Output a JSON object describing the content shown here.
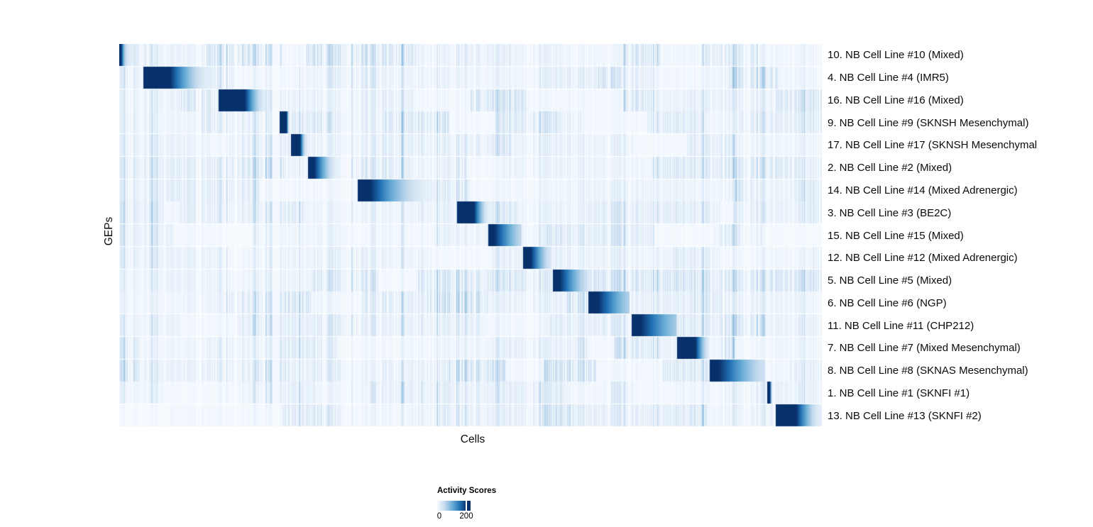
{
  "chart_data": {
    "type": "heatmap",
    "title": "",
    "xlabel": "Cells",
    "ylabel": "GEPs",
    "x_axis_ticks": "none (individual cells, unlabeled columns)",
    "value_range": [
      0,
      240
    ],
    "colormap": {
      "name": "Blues (white to dark navy)",
      "stops": [
        "#f7fbff",
        "#c6dbef",
        "#6baed6",
        "#2171b5",
        "#08306b"
      ]
    },
    "legend": {
      "title": "Activity Scores",
      "labels": [
        "0",
        "200"
      ],
      "min_value": 0,
      "tick_value": 200,
      "position": "bottom-center"
    },
    "grid": false,
    "layout": "rows = GEPs (17), columns = single cells; each GEP shows a dark high-activity block over its own cell-line cluster, forming a diagonal; faint vertical striping elsewhere",
    "rows": [
      {
        "label": "10. NB Cell Line #10 (Mixed)",
        "block": {
          "start": 0.0,
          "solid_end": 0.003,
          "fade_end": 0.028,
          "end_v": 0.1,
          "power": 6.0,
          "peak": 1.0
        }
      },
      {
        "label": "4. NB Cell Line #4 (IMR5)",
        "block": {
          "start": 0.0343,
          "solid_end": 0.0727,
          "fade_end": 0.1434,
          "end_v": 0.03,
          "power": 2.0,
          "peak": 1.0
        }
      },
      {
        "label": "16. NB Cell Line #16 (Mixed)",
        "block": {
          "start": 0.1414,
          "solid_end": 0.1788,
          "fade_end": 0.2152,
          "end_v": 0.05,
          "power": 2.0,
          "peak": 1.0
        }
      },
      {
        "label": "9. NB Cell Line #9 (SKNSH Mesenchymal)",
        "block": {
          "start": 0.2283,
          "solid_end": 0.2384,
          "fade_end": 0.2424,
          "end_v": 0.1,
          "power": 2.0,
          "peak": 1.0
        }
      },
      {
        "label": "17. NB Cell Line #17 (SKNSH Mesenchymal",
        "block": {
          "start": 0.2444,
          "solid_end": 0.2576,
          "fade_end": 0.2677,
          "end_v": 0.1,
          "power": 2.0,
          "peak": 1.0
        }
      },
      {
        "label": "2. NB Cell Line #2 (Mixed)",
        "block": {
          "start": 0.2687,
          "solid_end": 0.2778,
          "fade_end": 0.3152,
          "end_v": 0.05,
          "power": 1.8,
          "peak": 1.0
        }
      },
      {
        "label": "14. NB Cell Line #14 (Mixed Adrenergic)",
        "block": {
          "start": 0.3394,
          "solid_end": 0.3576,
          "fade_end": 0.4697,
          "end_v": 0.02,
          "power": 2.2,
          "peak": 1.0
        }
      },
      {
        "label": "3. NB Cell Line #3 (BE2C)",
        "block": {
          "start": 0.4808,
          "solid_end": 0.5051,
          "fade_end": 0.5293,
          "end_v": 0.05,
          "power": 1.8,
          "peak": 1.0
        }
      },
      {
        "label": "15. NB Cell Line #15 (Mixed)",
        "block": {
          "start": 0.5253,
          "solid_end": 0.5343,
          "fade_end": 0.5727,
          "end_v": 0.25,
          "power": 1.3,
          "peak": 1.0
        }
      },
      {
        "label": "12. NB Cell Line #12 (Mixed Adrenergic)",
        "block": {
          "start": 0.5747,
          "solid_end": 0.5859,
          "fade_end": 0.6152,
          "end_v": 0.15,
          "power": 1.5,
          "peak": 1.0
        }
      },
      {
        "label": "5. NB Cell Line #5 (Mixed)",
        "block": {
          "start": 0.6172,
          "solid_end": 0.6273,
          "fade_end": 0.6667,
          "end_v": 0.2,
          "power": 1.4,
          "peak": 1.0
        }
      },
      {
        "label": "6. NB Cell Line #6 (NGP)",
        "block": {
          "start": 0.6677,
          "solid_end": 0.6818,
          "fade_end": 0.7263,
          "end_v": 0.3,
          "power": 1.3,
          "peak": 1.0
        }
      },
      {
        "label": "11. NB Cell Line #11 (CHP212)",
        "block": {
          "start": 0.7293,
          "solid_end": 0.7424,
          "fade_end": 0.7929,
          "end_v": 0.35,
          "power": 1.3,
          "peak": 1.0
        }
      },
      {
        "label": "7. NB Cell Line #7 (Mixed Mesenchymal)",
        "block": {
          "start": 0.7939,
          "solid_end": 0.8202,
          "fade_end": 0.8384,
          "end_v": 0.15,
          "power": 1.5,
          "peak": 1.0
        }
      },
      {
        "label": "8. NB Cell Line #8 (SKNAS Mesenchymal)",
        "block": {
          "start": 0.8404,
          "solid_end": 0.8535,
          "fade_end": 0.9192,
          "end_v": 0.2,
          "power": 1.4,
          "peak": 1.0
        }
      },
      {
        "label": "1. NB Cell Line #1 (SKNFI #1)",
        "block": {
          "start": 0.9222,
          "solid_end": 0.9263,
          "fade_end": 0.9293,
          "end_v": 0.2,
          "power": 2.0,
          "peak": 1.0
        }
      },
      {
        "label": "13. NB Cell Line #13 (SKNFI #2)",
        "block": {
          "start": 0.9343,
          "solid_end": 0.9636,
          "fade_end": 0.999,
          "end_v": 0.1,
          "power": 1.6,
          "peak": 1.0
        }
      }
    ]
  }
}
